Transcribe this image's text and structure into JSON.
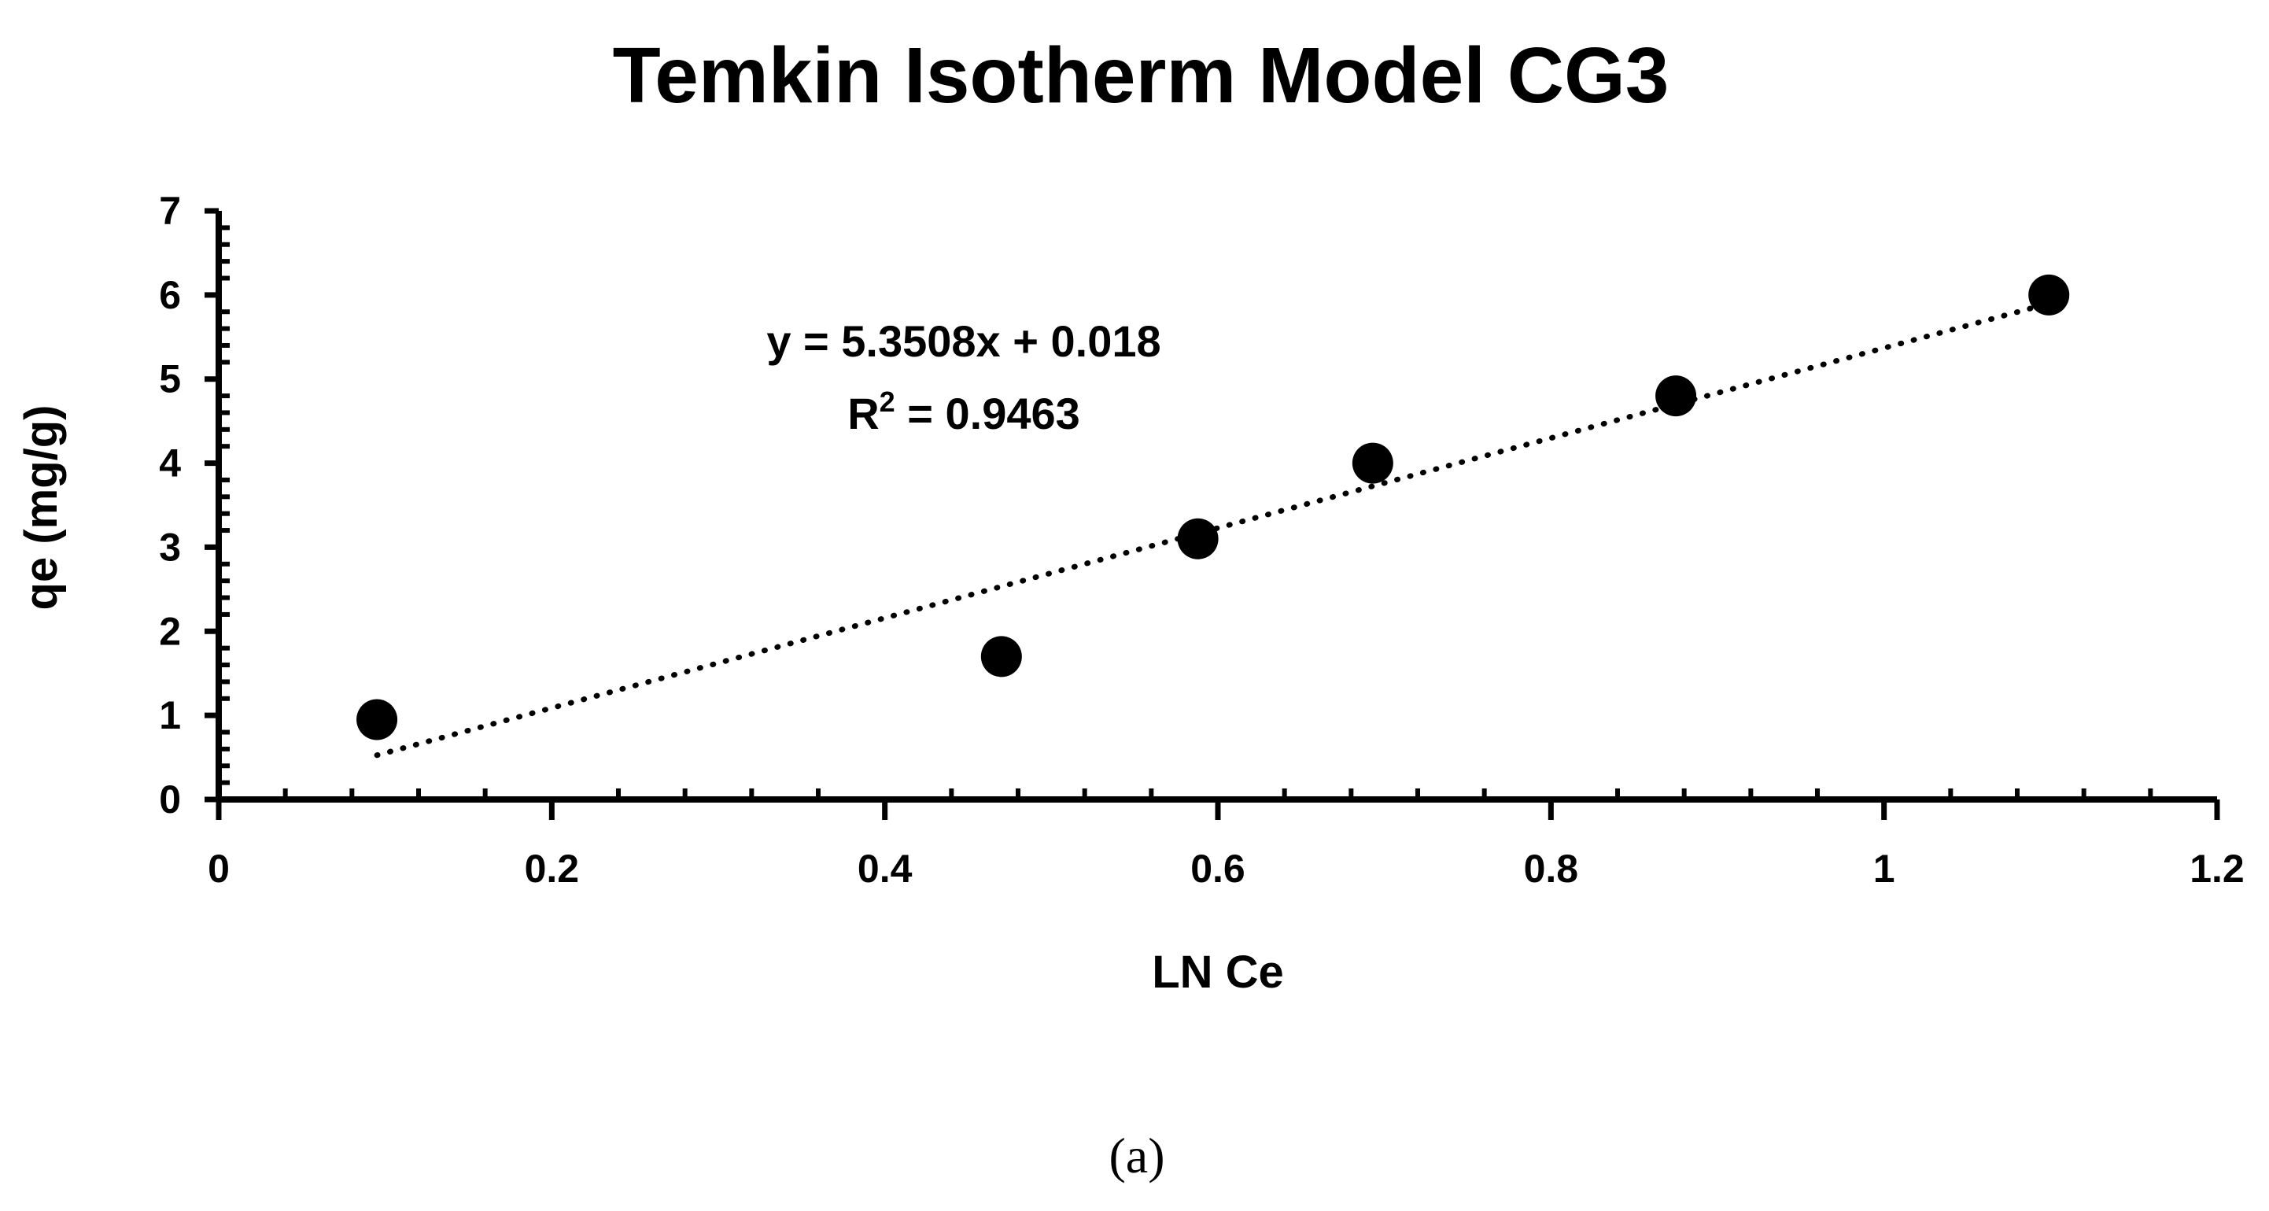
{
  "chart_data": {
    "type": "scatter",
    "title": "Temkin Isotherm Model CG3",
    "xlabel": "LN Ce",
    "ylabel": "qe (mg/g)",
    "xlim": [
      0,
      1.2
    ],
    "ylim": [
      0,
      7
    ],
    "x_ticks": [
      "0",
      "0.2",
      "0.4",
      "0.6",
      "0.8",
      "1",
      "1.2"
    ],
    "y_ticks": [
      "0",
      "1",
      "2",
      "3",
      "4",
      "5",
      "6",
      "7"
    ],
    "series": [
      {
        "name": "qe",
        "x": [
          0.095,
          0.47,
          0.588,
          0.693,
          0.875,
          1.099
        ],
        "y": [
          0.95,
          1.7,
          3.1,
          4.0,
          4.8,
          6.0
        ]
      }
    ],
    "trendline": {
      "type": "linear",
      "style": "dotted",
      "slope": 5.3508,
      "intercept": 0.018,
      "x_range": [
        0.095,
        1.099
      ],
      "equation": "y = 5.3508x + 0.018",
      "r2_prefix": "R",
      "r2_sup": "2",
      "r2_value": " = 0.9463"
    },
    "grid": false,
    "legend": "none"
  },
  "caption": "(a)",
  "colors": {
    "marker": "#000000",
    "axis": "#000000",
    "background": "#ffffff"
  }
}
